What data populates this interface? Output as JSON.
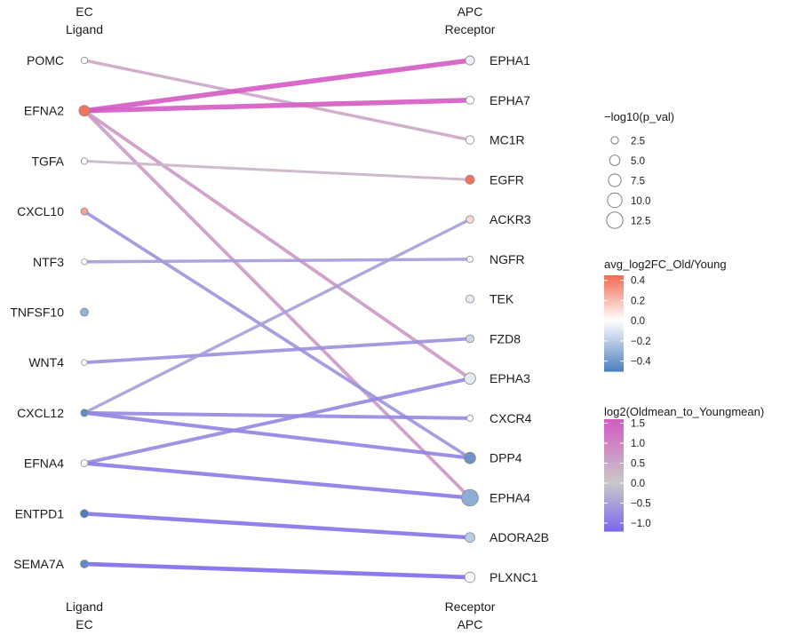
{
  "chart_data": {
    "type": "bipartite-network",
    "top_left_header": [
      "EC",
      "Ligand"
    ],
    "top_right_header": [
      "APC",
      "Receptor"
    ],
    "bottom_left_header": [
      "Ligand",
      "EC"
    ],
    "bottom_right_header": [
      "Receptor",
      "APC"
    ],
    "ligands": [
      {
        "name": "POMC",
        "fc": 0.0,
        "p": 2.0
      },
      {
        "name": "EFNA2",
        "fc": 0.42,
        "p": 5.5
      },
      {
        "name": "TGFA",
        "fc": 0.0,
        "p": 2.0
      },
      {
        "name": "CXCL10",
        "fc": 0.28,
        "p": 2.3
      },
      {
        "name": "NTF3",
        "fc": 0.0,
        "p": 1.6
      },
      {
        "name": "TNFSF10",
        "fc": -0.3,
        "p": 3.0
      },
      {
        "name": "WNT4",
        "fc": 0.0,
        "p": 1.6
      },
      {
        "name": "CXCL12",
        "fc": -0.45,
        "p": 2.5
      },
      {
        "name": "EFNA4",
        "fc": 0.0,
        "p": 2.3
      },
      {
        "name": "ENTPD1",
        "fc": -0.5,
        "p": 3.0
      },
      {
        "name": "SEMA7A",
        "fc": -0.45,
        "p": 3.0
      }
    ],
    "receptors": [
      {
        "name": "EPHA1",
        "fc": -0.05,
        "p": 3.8
      },
      {
        "name": "EPHA7",
        "fc": 0.0,
        "p": 3.0
      },
      {
        "name": "MC1R",
        "fc": 0.0,
        "p": 3.3
      },
      {
        "name": "EGFR",
        "fc": 0.42,
        "p": 3.8
      },
      {
        "name": "ACKR3",
        "fc": 0.12,
        "p": 2.7
      },
      {
        "name": "NGFR",
        "fc": 0.0,
        "p": 1.8
      },
      {
        "name": "TEK",
        "fc": -0.08,
        "p": 3.0
      },
      {
        "name": "FZD8",
        "fc": -0.15,
        "p": 3.0
      },
      {
        "name": "EPHA3",
        "fc": -0.08,
        "p": 6.0
      },
      {
        "name": "CXCR4",
        "fc": 0.0,
        "p": 1.8
      },
      {
        "name": "DPP4",
        "fc": -0.42,
        "p": 6.0
      },
      {
        "name": "EPHA4",
        "fc": -0.32,
        "p": 13.0
      },
      {
        "name": "ADORA2B",
        "fc": -0.2,
        "p": 4.5
      },
      {
        "name": "PLXNC1",
        "fc": -0.02,
        "p": 5.0
      }
    ],
    "links": [
      {
        "ligand": "POMC",
        "receptor": "MC1R",
        "log2": 0.5
      },
      {
        "ligand": "EFNA2",
        "receptor": "EPHA1",
        "log2": 1.6
      },
      {
        "ligand": "EFNA2",
        "receptor": "EPHA7",
        "log2": 1.6
      },
      {
        "ligand": "EFNA2",
        "receptor": "EPHA3",
        "log2": 0.7
      },
      {
        "ligand": "EFNA2",
        "receptor": "EPHA4",
        "log2": 0.7
      },
      {
        "ligand": "TGFA",
        "receptor": "EGFR",
        "log2": 0.3
      },
      {
        "ligand": "CXCL10",
        "receptor": "DPP4",
        "log2": -0.65
      },
      {
        "ligand": "NTF3",
        "receptor": "NGFR",
        "log2": -0.55
      },
      {
        "ligand": "WNT4",
        "receptor": "FZD8",
        "log2": -0.7
      },
      {
        "ligand": "CXCL12",
        "receptor": "ACKR3",
        "log2": -0.5
      },
      {
        "ligand": "CXCL12",
        "receptor": "CXCR4",
        "log2": -0.8
      },
      {
        "ligand": "CXCL12",
        "receptor": "DPP4",
        "log2": -0.85
      },
      {
        "ligand": "EFNA4",
        "receptor": "EPHA3",
        "log2": -0.8
      },
      {
        "ligand": "EFNA4",
        "receptor": "EPHA4",
        "log2": -0.95
      },
      {
        "ligand": "ENTPD1",
        "receptor": "ADORA2B",
        "log2": -1.05
      },
      {
        "ligand": "SEMA7A",
        "receptor": "PLXNC1",
        "log2": -1.15
      }
    ],
    "legend_size": {
      "title": "−log10(p_val)",
      "values": [
        2.5,
        5.0,
        7.5,
        10.0,
        12.5
      ],
      "labels": [
        "2.5",
        "5.0",
        "7.5",
        "10.0",
        "12.5"
      ]
    },
    "legend_fc": {
      "title": "avg_log2FC_Old/Young",
      "range": [
        -0.5,
        0.45
      ],
      "ticks": [
        0.4,
        0.2,
        0.0,
        -0.2,
        -0.4
      ],
      "labels": [
        "0.4",
        "0.2",
        "0.0",
        "−0.2",
        "−0.4"
      ],
      "colors": {
        "low": "#4f7fbf",
        "mid": "#ffffff",
        "high": "#f26a50"
      }
    },
    "legend_log2": {
      "title": "log2(Oldmean_to_Youngmean)",
      "range": [
        -1.2,
        1.6
      ],
      "ticks": [
        1.5,
        1.0,
        0.5,
        0.0,
        -0.5,
        -1.0
      ],
      "labels": [
        "1.5",
        "1.0",
        "0.5",
        "0.0",
        "−0.5",
        "−1.0"
      ],
      "colors": {
        "low": "#7b68ee",
        "mid": "#c8c8c8",
        "high": "#d45bc4"
      }
    }
  }
}
